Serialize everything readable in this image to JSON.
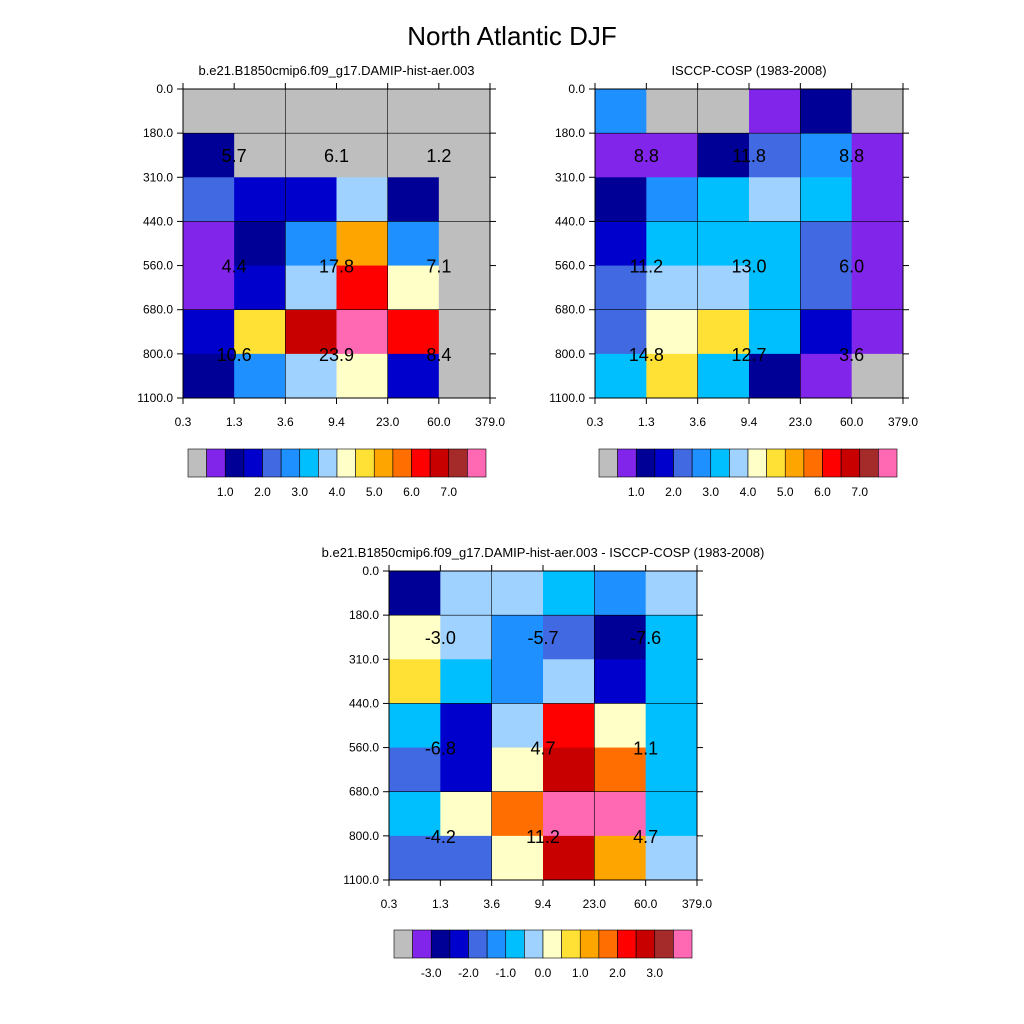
{
  "figure_title": "North Atlantic DJF",
  "palette": {
    "gray": "#bebebe",
    "purple": "#8225ea",
    "navy": "#000096",
    "blue": "#0000cd",
    "royal": "#4169e1",
    "dodger": "#1e90ff",
    "cyan": "#00bfff",
    "lightblue": "#a0d2ff",
    "cream": "#ffffc8",
    "yellow": "#ffe135",
    "orange": "#ffa500",
    "darkorange": "#ff6e00",
    "red": "#ff0000",
    "crimson": "#c80000",
    "brown": "#a52a2a",
    "pink": "#ff69b4"
  },
  "colorbar_keys": [
    "gray",
    "purple",
    "navy",
    "blue",
    "royal",
    "dodger",
    "cyan",
    "lightblue",
    "cream",
    "yellow",
    "orange",
    "darkorange",
    "red",
    "crimson",
    "brown",
    "pink"
  ],
  "chart_data": [
    {
      "type": "heatmap",
      "title": "b.e21.B1850cmip6.f09_g17.DAMIP-hist-aer.003",
      "x_ticks": [
        "0.3",
        "1.3",
        "3.6",
        "9.4",
        "23.0",
        "60.0",
        "379.0"
      ],
      "y_ticks": [
        "0.0",
        "180.0",
        "310.0",
        "440.0",
        "560.0",
        "680.0",
        "800.0",
        "1100.0"
      ],
      "cell_colors": [
        [
          "gray",
          "gray",
          "gray",
          "gray",
          "gray",
          "gray"
        ],
        [
          "navy",
          "gray",
          "gray",
          "gray",
          "gray",
          "gray"
        ],
        [
          "royal",
          "blue",
          "blue",
          "lightblue",
          "navy",
          "gray"
        ],
        [
          "purple",
          "navy",
          "dodger",
          "orange",
          "dodger",
          "gray"
        ],
        [
          "purple",
          "blue",
          "lightblue",
          "red",
          "cream",
          "gray"
        ],
        [
          "blue",
          "yellow",
          "crimson",
          "pink",
          "red",
          "gray"
        ],
        [
          "navy",
          "dodger",
          "lightblue",
          "cream",
          "blue",
          "gray"
        ]
      ],
      "group_values": [
        [
          "5.7",
          "6.1",
          "1.2"
        ],
        [
          "4.4",
          "17.8",
          "7.1"
        ],
        [
          "10.6",
          "23.9",
          "8.4"
        ]
      ],
      "colorbar_labels": [
        "1.0",
        "2.0",
        "3.0",
        "4.0",
        "5.0",
        "6.0",
        "7.0"
      ]
    },
    {
      "type": "heatmap",
      "title": "ISCCP-COSP (1983-2008)",
      "x_ticks": [
        "0.3",
        "1.3",
        "3.6",
        "9.4",
        "23.0",
        "60.0",
        "379.0"
      ],
      "y_ticks": [
        "0.0",
        "180.0",
        "310.0",
        "440.0",
        "560.0",
        "680.0",
        "800.0",
        "1100.0"
      ],
      "cell_colors": [
        [
          "dodger",
          "gray",
          "gray",
          "purple",
          "navy",
          "gray"
        ],
        [
          "purple",
          "purple",
          "navy",
          "royal",
          "dodger",
          "purple"
        ],
        [
          "navy",
          "dodger",
          "cyan",
          "lightblue",
          "cyan",
          "purple"
        ],
        [
          "blue",
          "cyan",
          "cyan",
          "cyan",
          "royal",
          "purple"
        ],
        [
          "royal",
          "lightblue",
          "lightblue",
          "cyan",
          "royal",
          "purple"
        ],
        [
          "royal",
          "cream",
          "yellow",
          "cyan",
          "blue",
          "purple"
        ],
        [
          "cyan",
          "yellow",
          "cyan",
          "navy",
          "purple",
          "gray"
        ]
      ],
      "group_values": [
        [
          "8.8",
          "11.8",
          "8.8"
        ],
        [
          "11.2",
          "13.0",
          "6.0"
        ],
        [
          "14.8",
          "12.7",
          "3.6"
        ]
      ],
      "colorbar_labels": [
        "1.0",
        "2.0",
        "3.0",
        "4.0",
        "5.0",
        "6.0",
        "7.0"
      ]
    },
    {
      "type": "heatmap",
      "title": "b.e21.B1850cmip6.f09_g17.DAMIP-hist-aer.003 - ISCCP-COSP (1983-2008)",
      "x_ticks": [
        "0.3",
        "1.3",
        "3.6",
        "9.4",
        "23.0",
        "60.0",
        "379.0"
      ],
      "y_ticks": [
        "0.0",
        "180.0",
        "310.0",
        "440.0",
        "560.0",
        "680.0",
        "800.0",
        "1100.0"
      ],
      "cell_colors": [
        [
          "navy",
          "lightblue",
          "lightblue",
          "cyan",
          "dodger",
          "lightblue"
        ],
        [
          "cream",
          "lightblue",
          "dodger",
          "royal",
          "navy",
          "cyan"
        ],
        [
          "yellow",
          "cyan",
          "dodger",
          "lightblue",
          "blue",
          "cyan"
        ],
        [
          "cyan",
          "blue",
          "lightblue",
          "red",
          "cream",
          "cyan"
        ],
        [
          "royal",
          "blue",
          "cream",
          "crimson",
          "darkorange",
          "cyan"
        ],
        [
          "cyan",
          "cream",
          "darkorange",
          "pink",
          "pink",
          "cyan"
        ],
        [
          "royal",
          "royal",
          "cream",
          "crimson",
          "orange",
          "lightblue"
        ]
      ],
      "group_values": [
        [
          "-3.0",
          "-5.7",
          "-7.6"
        ],
        [
          "-6.8",
          "4.7",
          "1.1"
        ],
        [
          "-4.2",
          "11.2",
          "4.7"
        ]
      ],
      "colorbar_labels": [
        "-3.0",
        "-2.0",
        "-1.0",
        "0.0",
        "1.0",
        "2.0",
        "3.0"
      ]
    }
  ]
}
